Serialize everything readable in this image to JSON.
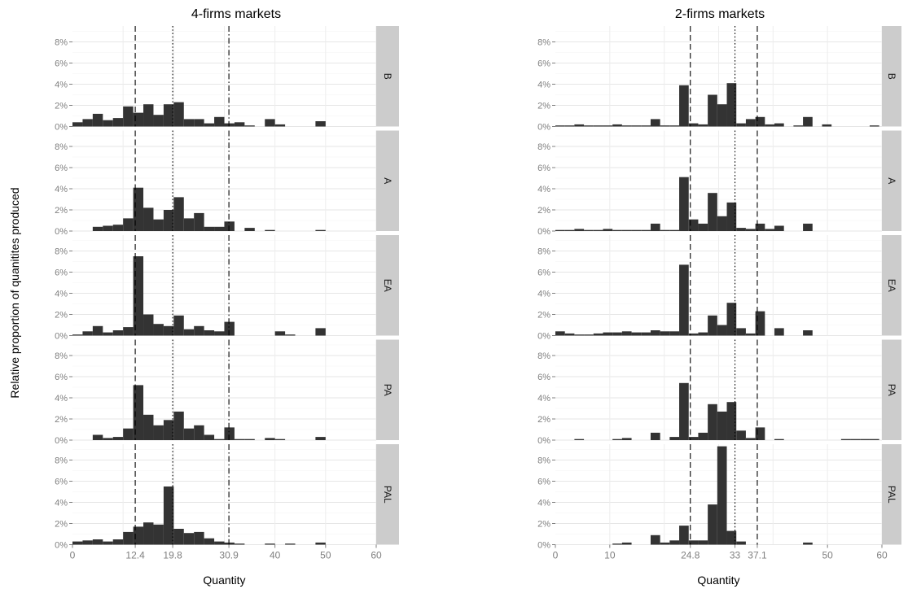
{
  "chart_data": {
    "type": "bar",
    "chart_subtype": "faceted-histogram",
    "ylabel": "Relative proportion of quanitites produced",
    "xlabel": "Quantity",
    "y_ticks": [
      "0%",
      "2%",
      "4%",
      "6%",
      "8%"
    ],
    "ylim": [
      0,
      0.095
    ],
    "bar_color": "#333333",
    "facet_strip_color": "#cccccc",
    "grid": true,
    "rows": [
      "B",
      "A",
      "EA",
      "PA",
      "PAL"
    ],
    "panels": [
      {
        "title": "4-firms markets",
        "xlim": [
          0,
          60
        ],
        "x_tick_labels": [
          {
            "value": 0,
            "label": "0"
          },
          {
            "value": 12.4,
            "label": "12.4"
          },
          {
            "value": 19.8,
            "label": "19.8"
          },
          {
            "value": 30.9,
            "label": "30.9"
          },
          {
            "value": 40,
            "label": "40"
          },
          {
            "value": 50,
            "label": "50"
          },
          {
            "value": 60,
            "label": "60"
          }
        ],
        "x_minor_grid": [
          10,
          20,
          30,
          40,
          50,
          60
        ],
        "reference_lines": [
          {
            "x": 12.4,
            "style": "dashed"
          },
          {
            "x": 19.8,
            "style": "dotted"
          },
          {
            "x": 30.9,
            "style": "dotdash"
          }
        ],
        "bin_width": 2,
        "bin_start": 0,
        "facets": [
          {
            "name": "B",
            "values": [
              0.004,
              0.007,
              0.012,
              0.006,
              0.008,
              0.019,
              0.013,
              0.021,
              0.011,
              0.021,
              0.023,
              0.007,
              0.007,
              0.003,
              0.009,
              0.003,
              0.004,
              0.001,
              0,
              0.007,
              0.002,
              0,
              0,
              0,
              0.005,
              0,
              0,
              0,
              0,
              0
            ]
          },
          {
            "name": "A",
            "values": [
              0,
              0,
              0.004,
              0.005,
              0.006,
              0.012,
              0.041,
              0.022,
              0.011,
              0.02,
              0.032,
              0.012,
              0.017,
              0.004,
              0.004,
              0.009,
              0,
              0.003,
              0,
              0.001,
              0,
              0,
              0,
              0,
              0.001,
              0,
              0,
              0,
              0,
              0
            ]
          },
          {
            "name": "EA",
            "values": [
              0.001,
              0.004,
              0.009,
              0.003,
              0.005,
              0.008,
              0.075,
              0.02,
              0.011,
              0.009,
              0.019,
              0.006,
              0.009,
              0.005,
              0.004,
              0.013,
              0,
              0,
              0,
              0,
              0.004,
              0.001,
              0,
              0,
              0.007,
              0,
              0,
              0,
              0,
              0
            ]
          },
          {
            "name": "PA",
            "values": [
              0,
              0,
              0.005,
              0.002,
              0.003,
              0.011,
              0.052,
              0.024,
              0.014,
              0.019,
              0.027,
              0.011,
              0.014,
              0.005,
              0.001,
              0.012,
              0.001,
              0.001,
              0,
              0.002,
              0.001,
              0,
              0,
              0,
              0.003,
              0,
              0,
              0,
              0,
              0
            ]
          },
          {
            "name": "PAL",
            "values": [
              0.003,
              0.004,
              0.005,
              0.003,
              0.005,
              0.012,
              0.017,
              0.021,
              0.019,
              0.055,
              0.015,
              0.011,
              0.012,
              0.006,
              0.003,
              0.002,
              0.001,
              0,
              0,
              0.001,
              0,
              0.001,
              0,
              0,
              0.002,
              0,
              0,
              0,
              0,
              0
            ]
          }
        ]
      },
      {
        "title": "2-firms markets",
        "xlim": [
          0,
          60
        ],
        "x_tick_labels": [
          {
            "value": 0,
            "label": "0"
          },
          {
            "value": 10,
            "label": "10"
          },
          {
            "value": 24.8,
            "label": "24.8"
          },
          {
            "value": 33,
            "label": "33"
          },
          {
            "value": 37.1,
            "label": "37.1"
          },
          {
            "value": 50,
            "label": "50"
          },
          {
            "value": 60,
            "label": "60"
          }
        ],
        "x_minor_grid": [
          10,
          20,
          30,
          40,
          50,
          60
        ],
        "reference_lines": [
          {
            "x": 24.8,
            "style": "dashed"
          },
          {
            "x": 33,
            "style": "dotted"
          },
          {
            "x": 37.1,
            "style": "dashed"
          }
        ],
        "bin_width": 1.75,
        "bin_start": 0,
        "facets": [
          {
            "name": "B",
            "values": [
              0.001,
              0.001,
              0.002,
              0.001,
              0.001,
              0.001,
              0.002,
              0.001,
              0.001,
              0.001,
              0.007,
              0.001,
              0.001,
              0.039,
              0.003,
              0.002,
              0.03,
              0.021,
              0.041,
              0.003,
              0.007,
              0.009,
              0.002,
              0.003,
              0,
              0.001,
              0.009,
              0,
              0.002,
              0,
              0,
              0,
              0,
              0.001
            ]
          },
          {
            "name": "A",
            "values": [
              0.001,
              0.001,
              0.002,
              0.001,
              0.001,
              0.002,
              0.001,
              0.001,
              0.001,
              0.001,
              0.007,
              0.001,
              0.001,
              0.051,
              0.011,
              0.007,
              0.036,
              0.014,
              0.027,
              0.003,
              0.002,
              0.007,
              0.002,
              0.005,
              0,
              0,
              0.007,
              0,
              0,
              0,
              0,
              0,
              0,
              0
            ]
          },
          {
            "name": "EA",
            "values": [
              0.004,
              0.002,
              0.001,
              0.001,
              0.002,
              0.003,
              0.003,
              0.004,
              0.003,
              0.003,
              0.005,
              0.004,
              0.004,
              0.067,
              0.002,
              0.003,
              0.019,
              0.01,
              0.031,
              0.007,
              0.002,
              0.023,
              0,
              0.007,
              0,
              0,
              0.005,
              0,
              0,
              0,
              0,
              0,
              0,
              0
            ]
          },
          {
            "name": "PA",
            "values": [
              0,
              0,
              0.001,
              0,
              0,
              0,
              0.001,
              0.002,
              0,
              0,
              0.007,
              0,
              0.003,
              0.054,
              0.003,
              0.007,
              0.034,
              0.027,
              0.036,
              0.009,
              0.002,
              0.012,
              0,
              0.001,
              0,
              0,
              0,
              0,
              0,
              0,
              0.001,
              0.001,
              0.001,
              0.001
            ]
          },
          {
            "name": "PAL",
            "values": [
              0,
              0,
              0,
              0,
              0,
              0,
              0.001,
              0.002,
              0,
              0,
              0.009,
              0.002,
              0.004,
              0.018,
              0.004,
              0.004,
              0.038,
              0.093,
              0.013,
              0.003,
              0,
              0,
              0,
              0,
              0,
              0,
              0.002,
              0,
              0,
              0,
              0,
              0,
              0,
              0
            ]
          }
        ]
      }
    ]
  }
}
